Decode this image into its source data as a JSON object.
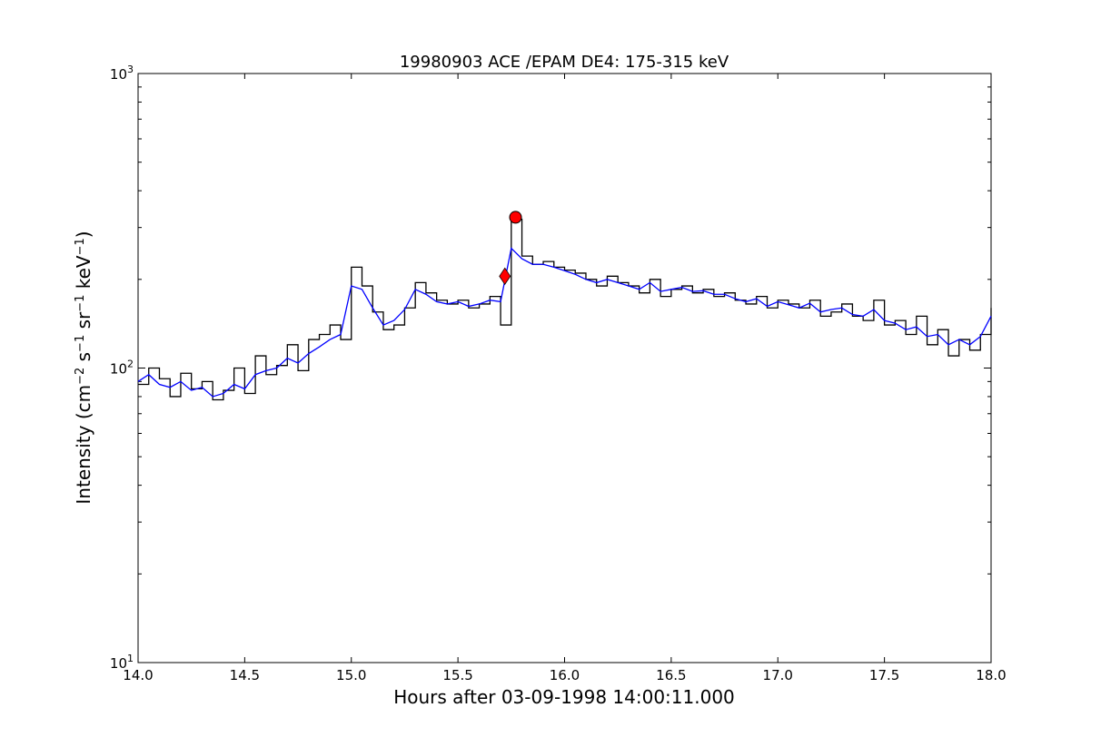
{
  "chart_data": {
    "type": "line",
    "title": "19980903 ACE /EPAM DE4: 175-315 keV",
    "xlabel": "Hours after 03-09-1998 14:00:11.000",
    "ylabel": {
      "text": "Intensity (cm−2 s−1 sr−1 keV−1)",
      "parts": [
        {
          "t": "Intensity (cm",
          "sup": false
        },
        {
          "t": "−2",
          "sup": true
        },
        {
          "t": " s",
          "sup": false
        },
        {
          "t": "−1",
          "sup": true
        },
        {
          "t": " sr",
          "sup": false
        },
        {
          "t": "−1",
          "sup": true
        },
        {
          "t": " keV",
          "sup": false
        },
        {
          "t": "−1",
          "sup": true
        },
        {
          "t": ")",
          "sup": false
        }
      ]
    },
    "xlim": [
      14.0,
      18.0
    ],
    "ylim": [
      10,
      1000
    ],
    "yscale": "log",
    "x_ticks": [
      14.0,
      14.5,
      15.0,
      15.5,
      16.0,
      16.5,
      17.0,
      17.5,
      18.0
    ],
    "x_tick_labels": [
      "14.0",
      "14.5",
      "15.0",
      "15.5",
      "16.0",
      "16.5",
      "17.0",
      "17.5",
      "18.0"
    ],
    "y_ticks": [
      {
        "value": 10,
        "base": "10",
        "exp": "1"
      },
      {
        "value": 100,
        "base": "10",
        "exp": "2"
      },
      {
        "value": 1000,
        "base": "10",
        "exp": "3"
      }
    ],
    "grid": false,
    "legend": "none",
    "series": [
      {
        "style": "step",
        "color": "#000000",
        "x": [
          14.0,
          14.05,
          14.1,
          14.15,
          14.2,
          14.25,
          14.3,
          14.35,
          14.4,
          14.45,
          14.5,
          14.55,
          14.6,
          14.65,
          14.7,
          14.75,
          14.8,
          14.85,
          14.9,
          14.95,
          15.0,
          15.05,
          15.1,
          15.15,
          15.2,
          15.25,
          15.3,
          15.35,
          15.4,
          15.45,
          15.5,
          15.55,
          15.6,
          15.65,
          15.7,
          15.75,
          15.8,
          15.85,
          15.9,
          15.95,
          16.0,
          16.05,
          16.1,
          16.15,
          16.2,
          16.25,
          16.3,
          16.35,
          16.4,
          16.45,
          16.5,
          16.55,
          16.6,
          16.65,
          16.7,
          16.75,
          16.8,
          16.85,
          16.9,
          16.95,
          17.0,
          17.05,
          17.1,
          17.15,
          17.2,
          17.25,
          17.3,
          17.35,
          17.4,
          17.45,
          17.5,
          17.55,
          17.6,
          17.65,
          17.7,
          17.75,
          17.8,
          17.85,
          17.9,
          17.95,
          18.0
        ],
        "y": [
          88,
          100,
          92,
          80,
          96,
          85,
          90,
          78,
          84,
          100,
          82,
          110,
          95,
          102,
          120,
          98,
          125,
          130,
          140,
          125,
          220,
          190,
          155,
          135,
          140,
          160,
          195,
          180,
          170,
          165,
          170,
          160,
          165,
          175,
          140,
          320,
          240,
          225,
          230,
          220,
          215,
          210,
          200,
          190,
          205,
          195,
          190,
          180,
          200,
          175,
          185,
          190,
          180,
          185,
          175,
          180,
          170,
          165,
          175,
          160,
          170,
          165,
          160,
          170,
          150,
          155,
          165,
          150,
          145,
          170,
          140,
          145,
          130,
          150,
          120,
          135,
          110,
          125,
          115,
          130,
          160
        ]
      },
      {
        "style": "line",
        "color": "#0000ff",
        "x": [
          14.0,
          14.05,
          14.1,
          14.15,
          14.2,
          14.25,
          14.3,
          14.35,
          14.4,
          14.45,
          14.5,
          14.55,
          14.6,
          14.65,
          14.7,
          14.75,
          14.8,
          14.85,
          14.9,
          14.95,
          15.0,
          15.05,
          15.1,
          15.15,
          15.2,
          15.25,
          15.3,
          15.35,
          15.4,
          15.45,
          15.5,
          15.55,
          15.6,
          15.65,
          15.7,
          15.75,
          15.8,
          15.85,
          15.9,
          15.95,
          16.0,
          16.05,
          16.1,
          16.15,
          16.2,
          16.25,
          16.3,
          16.35,
          16.4,
          16.45,
          16.5,
          16.55,
          16.6,
          16.65,
          16.7,
          16.75,
          16.8,
          16.85,
          16.9,
          16.95,
          17.0,
          17.05,
          17.1,
          17.15,
          17.2,
          17.25,
          17.3,
          17.35,
          17.4,
          17.45,
          17.5,
          17.55,
          17.6,
          17.65,
          17.7,
          17.75,
          17.8,
          17.85,
          17.9,
          17.95,
          18.0
        ],
        "y": [
          90,
          95,
          88,
          86,
          90,
          84,
          86,
          80,
          82,
          88,
          85,
          95,
          98,
          100,
          108,
          104,
          112,
          118,
          125,
          130,
          190,
          185,
          160,
          140,
          145,
          158,
          185,
          178,
          168,
          165,
          168,
          162,
          165,
          170,
          168,
          255,
          235,
          225,
          225,
          220,
          214,
          208,
          200,
          195,
          200,
          195,
          190,
          185,
          195,
          182,
          185,
          188,
          182,
          183,
          178,
          178,
          172,
          168,
          172,
          162,
          168,
          164,
          160,
          166,
          155,
          158,
          160,
          152,
          150,
          158,
          145,
          142,
          135,
          138,
          128,
          130,
          120,
          125,
          120,
          128,
          150
        ]
      },
      {
        "style": "marker",
        "marker": "circle",
        "color": "#ff0000",
        "x": [
          15.77
        ],
        "y": [
          325
        ]
      },
      {
        "style": "marker",
        "marker": "diamond",
        "color": "#ff0000",
        "x": [
          15.72
        ],
        "y": [
          205
        ]
      }
    ]
  }
}
